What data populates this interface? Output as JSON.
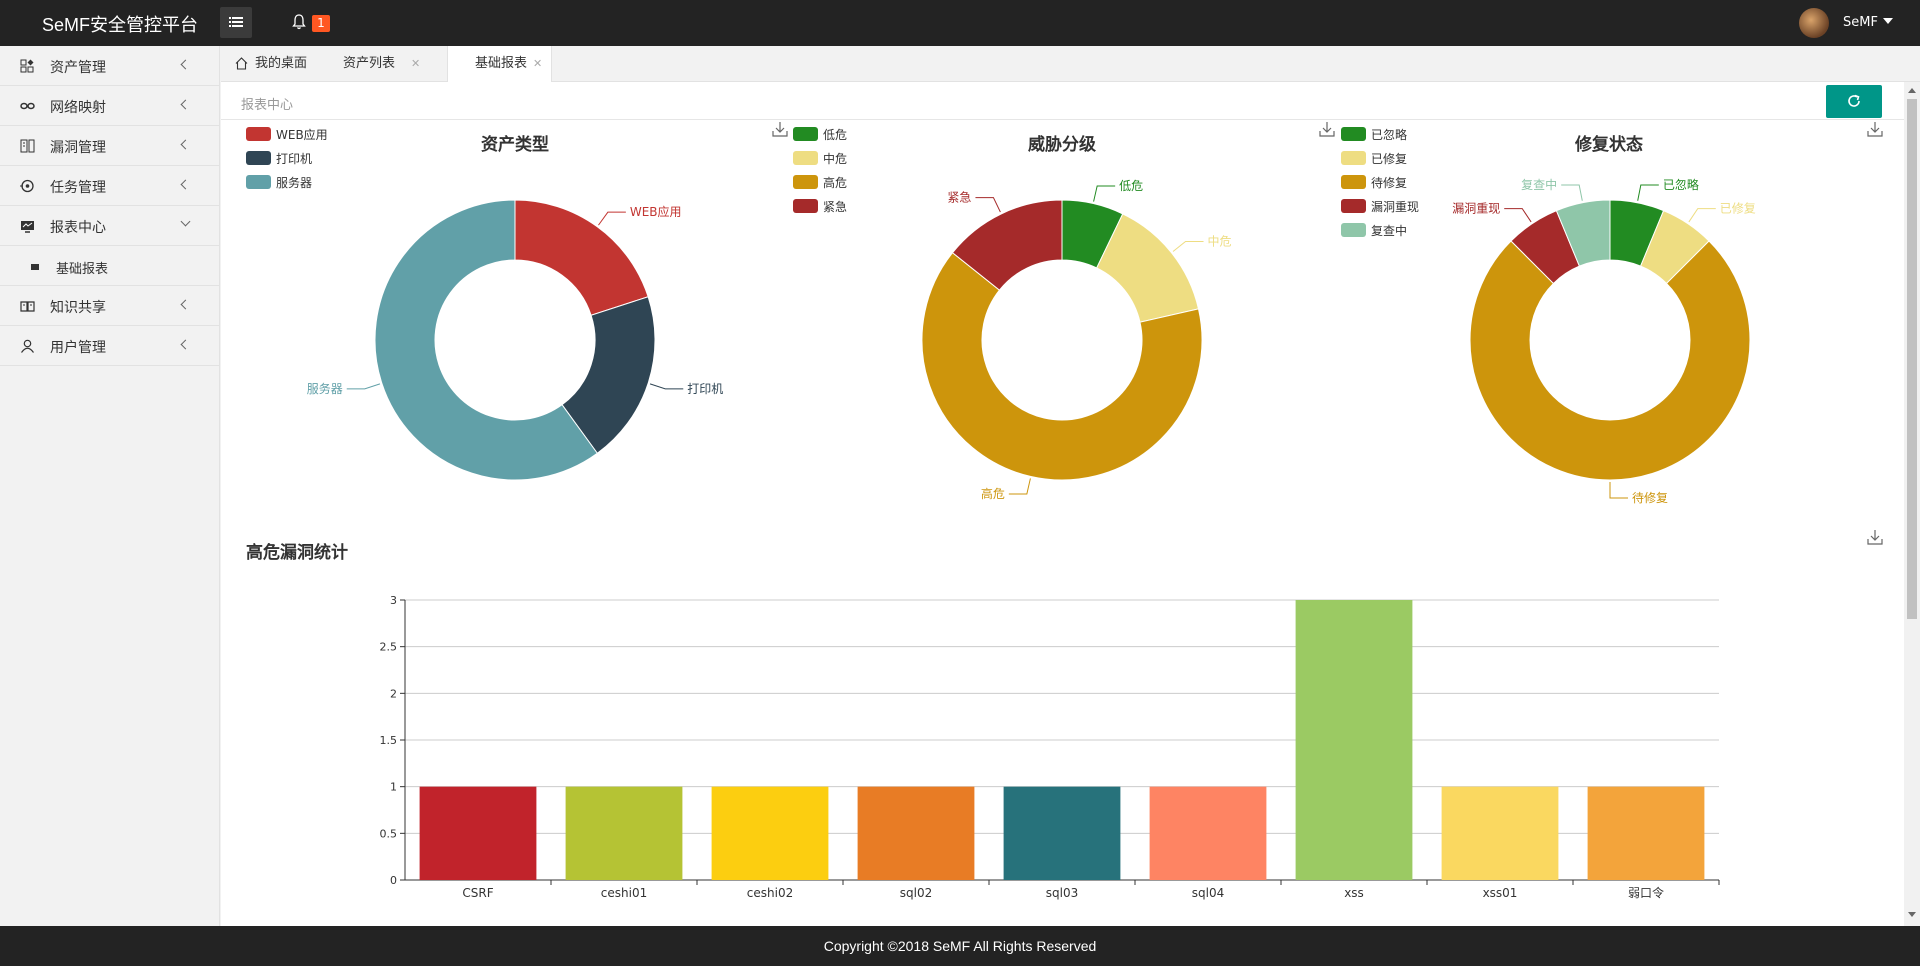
{
  "app": {
    "title": "SeMF安全管控平台",
    "notification_count": "1",
    "user_name": "SeMF"
  },
  "sidebar": {
    "items": [
      {
        "label": "资产管理",
        "icon": "asset-icon"
      },
      {
        "label": "网络映射",
        "icon": "link-icon"
      },
      {
        "label": "漏洞管理",
        "icon": "vuln-icon"
      },
      {
        "label": "任务管理",
        "icon": "task-icon"
      },
      {
        "label": "报表中心",
        "icon": "report-icon",
        "expanded": true
      },
      {
        "label": "知识共享",
        "icon": "book-icon"
      },
      {
        "label": "用户管理",
        "icon": "user-icon"
      }
    ],
    "subitems": [
      {
        "label": "基础报表"
      }
    ]
  },
  "tabs": [
    {
      "label": "我的桌面",
      "closable": false
    },
    {
      "label": "资产列表",
      "closable": true
    },
    {
      "label": "基础报表",
      "closable": true,
      "active": true
    }
  ],
  "breadcrumb": "报表中心",
  "footer": "Copyright ©2018 SeMF All Rights Reserved",
  "colors": {
    "accent": "#009688",
    "badge": "#ff5722",
    "header": "#232323"
  },
  "chart_data": [
    {
      "type": "pie",
      "title": "资产类型",
      "categories": [
        "WEB应用",
        "打印机",
        "服务器"
      ],
      "values": [
        1,
        1,
        3
      ],
      "colors": [
        "#c23531",
        "#2f4554",
        "#61a0a8"
      ]
    },
    {
      "type": "pie",
      "title": "威胁分级",
      "categories": [
        "低危",
        "中危",
        "高危",
        "紧急"
      ],
      "values": [
        1,
        2,
        9,
        2
      ],
      "colors": [
        "#228b22",
        "#eedd82",
        "#cd950c",
        "#a52a2a"
      ]
    },
    {
      "type": "pie",
      "title": "修复状态",
      "categories": [
        "已忽略",
        "已修复",
        "待修复",
        "漏洞重现",
        "复查中"
      ],
      "values": [
        1,
        1,
        12,
        1,
        1
      ],
      "colors": [
        "#228b22",
        "#eedd82",
        "#cd950c",
        "#a52a2a",
        "#8fc6a9"
      ]
    },
    {
      "type": "bar",
      "title": "高危漏洞统计",
      "categories": [
        "CSRF",
        "ceshi01",
        "ceshi02",
        "sql02",
        "sql03",
        "sql04",
        "xss",
        "xss01",
        "弱口令"
      ],
      "values": [
        1,
        1,
        1,
        1,
        1,
        1,
        3,
        1,
        1
      ],
      "colors": [
        "#c1232b",
        "#b5c334",
        "#fcce10",
        "#e87c25",
        "#27727b",
        "#fe8463",
        "#9bca63",
        "#fad860",
        "#f3a43b"
      ],
      "yticks": [
        "0",
        "0.5",
        "1",
        "1.5",
        "2",
        "2.5",
        "3"
      ],
      "ylim": [
        0,
        3
      ],
      "grid": true
    }
  ]
}
